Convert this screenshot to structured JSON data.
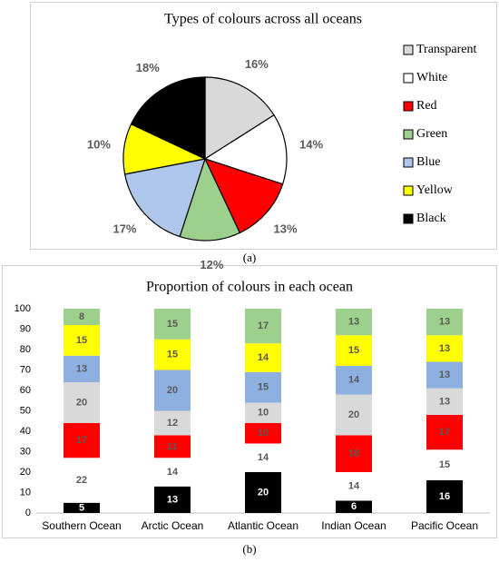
{
  "chart_data": [
    {
      "type": "pie",
      "title": "Types of colours across all oceans",
      "caption": "(a)",
      "categories": [
        "Transparent",
        "White",
        "Red",
        "Green",
        "Blue",
        "Yellow",
        "Black"
      ],
      "values": [
        16,
        14,
        13,
        12,
        17,
        10,
        18
      ],
      "value_labels": [
        "16%",
        "14%",
        "13%",
        "12%",
        "17%",
        "10%",
        "18%"
      ],
      "colors": [
        "#d9d9d9",
        "#ffffff",
        "#ff0000",
        "#9dd08c",
        "#adc6ea",
        "#ffff00",
        "#000000"
      ],
      "legend": "right"
    },
    {
      "type": "stacked_bar",
      "title": "Proportion of colours in each ocean",
      "caption": "(b)",
      "categories": [
        "Southern Ocean",
        "Arctic Ocean",
        "Atlantic Ocean",
        "Indian Ocean",
        "Pacific Ocean"
      ],
      "series": [
        {
          "color": "#000000",
          "values": [
            5,
            13,
            20,
            6,
            16
          ]
        },
        {
          "color": "#ffffff",
          "values": [
            22,
            14,
            14,
            14,
            15
          ]
        },
        {
          "color": "#ff0000",
          "values": [
            17,
            11,
            10,
            18,
            17
          ]
        },
        {
          "color": "#d9d9d9",
          "values": [
            20,
            12,
            10,
            20,
            13
          ]
        },
        {
          "color": "#8eb0e0",
          "values": [
            13,
            20,
            15,
            14,
            13
          ]
        },
        {
          "color": "#ffff00",
          "values": [
            15,
            15,
            14,
            15,
            13
          ]
        },
        {
          "color": "#9dd08c",
          "values": [
            8,
            15,
            17,
            13,
            13
          ]
        }
      ],
      "ylim": [
        0,
        100
      ],
      "yticks": [
        0,
        10,
        20,
        30,
        40,
        50,
        60,
        70,
        80,
        90,
        100
      ],
      "grid": false
    }
  ]
}
